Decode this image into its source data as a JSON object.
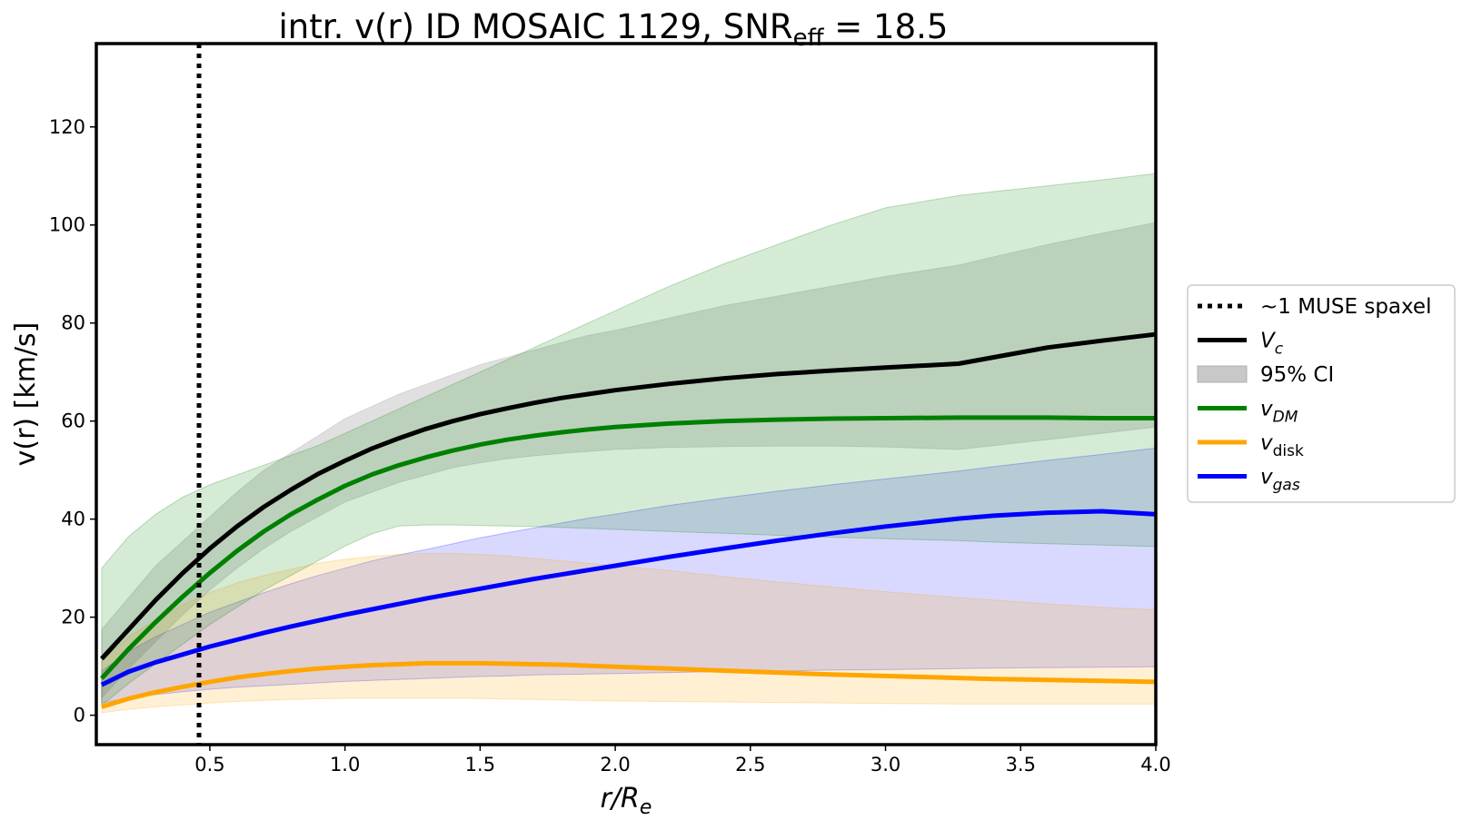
{
  "chart_data": {
    "type": "line",
    "title": {
      "main": "intr. v(r) ID MOSAIC 1129, SNR",
      "sub": "eff",
      "suffix": " = 18.5"
    },
    "xlabel": {
      "main": "r/R",
      "sub": "e"
    },
    "ylabel": "v(r) [km/s]",
    "xlim": [
      0.08,
      4.0
    ],
    "ylim": [
      -6,
      137
    ],
    "xticks": [
      0.5,
      1.0,
      1.5,
      2.0,
      2.5,
      3.0,
      3.5,
      4.0
    ],
    "xtick_labels": [
      "0.5",
      "1.0",
      "1.5",
      "2.0",
      "2.5",
      "3.0",
      "3.5",
      "4.0"
    ],
    "yticks": [
      0,
      20,
      40,
      60,
      80,
      100,
      120
    ],
    "ytick_labels": [
      "0",
      "20",
      "40",
      "60",
      "80",
      "100",
      "120"
    ],
    "grid": false,
    "legend_position": "outside-right",
    "vline": {
      "x": 0.46,
      "label": "~1 MUSE spaxel",
      "color": "#000000",
      "style": "dotted"
    },
    "x": [
      0.1,
      0.2,
      0.3,
      0.4,
      0.5,
      0.6,
      0.7,
      0.8,
      0.9,
      1.0,
      1.1,
      1.2,
      1.3,
      1.4,
      1.5,
      1.6,
      1.7,
      1.8,
      1.9,
      2.0,
      2.2,
      2.4,
      2.6,
      2.8,
      3.0,
      3.27,
      3.4,
      3.6,
      3.8,
      4.0
    ],
    "series": [
      {
        "key": "vc",
        "name": "V",
        "name_sub": "c",
        "sub_italic": true,
        "color": "#000000",
        "values": [
          11.5,
          17.5,
          23.5,
          29,
          34,
          38.5,
          42.5,
          46,
          49.2,
          51.9,
          54.4,
          56.5,
          58.4,
          60,
          61.4,
          62.6,
          63.7,
          64.7,
          65.5,
          66.3,
          67.6,
          68.7,
          69.6,
          70.3,
          70.9,
          71.7,
          73,
          75,
          76.4,
          77.7
        ],
        "band_lower": [
          3.5,
          9.5,
          15,
          20.5,
          25.5,
          30,
          34,
          37.5,
          40.5,
          43.5,
          45.5,
          47.5,
          49,
          50.5,
          51.5,
          52.3,
          52.9,
          53.4,
          53.8,
          54.2,
          54.6,
          54.8,
          54.9,
          54.9,
          54.7,
          54.2,
          55,
          56.2,
          57.5,
          58.8
        ],
        "band_upper": [
          17.5,
          24,
          30.5,
          35.5,
          40.5,
          45.5,
          50,
          53.5,
          57,
          60.5,
          63,
          65.5,
          67.5,
          69.5,
          71.5,
          73,
          74.5,
          76,
          77.5,
          78.5,
          81,
          83.5,
          85.5,
          87.5,
          89.5,
          91.8,
          93.5,
          96,
          98.3,
          100.5
        ]
      },
      {
        "key": "vdm",
        "name": "v",
        "name_sub": "DM",
        "sub_italic": true,
        "color": "#008000",
        "values": [
          7.5,
          13.5,
          19,
          24.2,
          29,
          33.5,
          37.5,
          41,
          44,
          46.8,
          49.1,
          51,
          52.6,
          54,
          55.2,
          56.2,
          57,
          57.7,
          58.3,
          58.8,
          59.5,
          60,
          60.3,
          60.5,
          60.6,
          60.7,
          60.7,
          60.7,
          60.6,
          60.6
        ],
        "band_lower": [
          2,
          6.5,
          10.5,
          14.5,
          18.5,
          22,
          25.5,
          28.5,
          31.5,
          34.5,
          37,
          38.6,
          38.8,
          38.8,
          38.7,
          38.6,
          38.5,
          38.3,
          38.1,
          37.9,
          37.5,
          37.1,
          36.7,
          36.3,
          36,
          35.6,
          35.3,
          35,
          34.7,
          34.4
        ],
        "band_upper": [
          30,
          36.5,
          41,
          44.5,
          47,
          49,
          51,
          53,
          55,
          57.5,
          60,
          62.5,
          65,
          67.5,
          70,
          72.5,
          75,
          77.5,
          80,
          82.5,
          87.5,
          92,
          96,
          100,
          103.5,
          106,
          106.8,
          108,
          109.2,
          110.5
        ]
      },
      {
        "key": "vdisk",
        "name": "v",
        "name_sub": "disk",
        "sub_italic": false,
        "color": "#ffa500",
        "values": [
          1.7,
          3.4,
          4.7,
          5.8,
          6.8,
          7.7,
          8.4,
          9.0,
          9.5,
          9.9,
          10.2,
          10.4,
          10.6,
          10.6,
          10.6,
          10.5,
          10.4,
          10.3,
          10.1,
          9.9,
          9.5,
          9.1,
          8.7,
          8.3,
          8.0,
          7.6,
          7.4,
          7.2,
          7.0,
          6.8
        ],
        "band_lower": [
          0.5,
          1.2,
          1.7,
          2.1,
          2.5,
          2.8,
          3.0,
          3.2,
          3.35,
          3.45,
          3.5,
          3.5,
          3.5,
          3.5,
          3.4,
          3.3,
          3.2,
          3.1,
          3.0,
          2.9,
          2.8,
          2.7,
          2.6,
          2.5,
          2.4,
          2.3,
          2.3,
          2.3,
          2.3,
          2.3
        ],
        "band_upper": [
          11,
          16,
          19.5,
          22.5,
          25,
          27,
          28.5,
          29.8,
          31,
          31.8,
          32.4,
          32.8,
          33,
          33,
          32.8,
          32.5,
          32,
          31.5,
          31,
          30.5,
          29.5,
          28.3,
          27.2,
          26.2,
          25.2,
          24,
          23.5,
          22.7,
          22,
          21.5
        ]
      },
      {
        "key": "vgas",
        "name": "v",
        "name_sub": "gas",
        "sub_italic": true,
        "color": "#0000ff",
        "values": [
          6.2,
          8.9,
          10.8,
          12.4,
          14.0,
          15.4,
          16.8,
          18.1,
          19.3,
          20.5,
          21.6,
          22.7,
          23.8,
          24.8,
          25.8,
          26.8,
          27.8,
          28.7,
          29.6,
          30.5,
          32.3,
          34.0,
          35.6,
          37.1,
          38.5,
          40.1,
          40.7,
          41.3,
          41.6,
          41.0
        ],
        "band_lower": [
          2.5,
          3.5,
          4.2,
          4.8,
          5.3,
          5.7,
          6.0,
          6.3,
          6.6,
          6.9,
          7.1,
          7.3,
          7.5,
          7.7,
          7.9,
          8.0,
          8.2,
          8.3,
          8.4,
          8.5,
          8.7,
          8.9,
          9.0,
          9.2,
          9.3,
          9.5,
          9.6,
          9.7,
          9.8,
          9.9
        ],
        "band_upper": [
          9,
          13,
          16,
          18.5,
          21,
          23,
          25,
          26.8,
          28.5,
          30,
          31.5,
          32.7,
          33.8,
          35,
          36.2,
          37.2,
          38.2,
          39.2,
          40.2,
          41,
          42.8,
          44.3,
          45.7,
          47,
          48.2,
          49.8,
          50.7,
          52,
          53.2,
          54.5
        ]
      }
    ],
    "ci_legend": {
      "label": "95% CI",
      "color": "#c8c8c8"
    },
    "legend": {
      "vline_label": "~1 MUSE spaxel",
      "ci_label": "95% CI"
    }
  }
}
